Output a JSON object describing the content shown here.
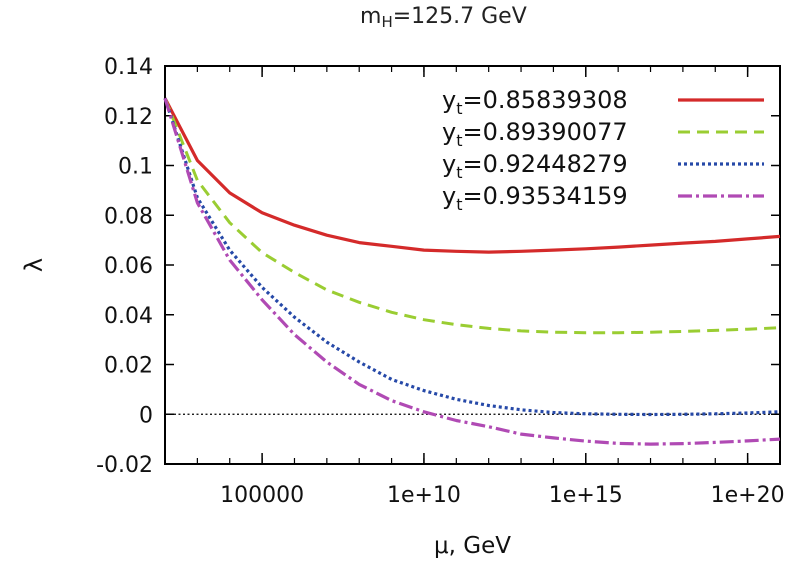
{
  "chart_data": {
    "type": "line",
    "title": {
      "prefix": "m",
      "sub": "H",
      "suffix": "=125.7 GeV"
    },
    "xlabel": "μ, GeV",
    "ylabel": "λ",
    "x_scale": "log10",
    "xlim": [
      100,
      1e+21
    ],
    "ylim": [
      -0.02,
      0.14
    ],
    "yticks": [
      -0.02,
      0,
      0.02,
      0.04,
      0.06,
      0.08,
      0.1,
      0.12,
      0.14
    ],
    "ytick_labels": [
      "-0.02",
      "0",
      "0.02",
      "0.04",
      "0.06",
      "0.08",
      "0.1",
      "0.12",
      "0.14"
    ],
    "xticks": [
      100000,
      10000000000.0,
      1000000000000000.0,
      1e+20
    ],
    "xtick_labels": [
      "100000",
      "1e+10",
      "1e+15",
      "1e+20"
    ],
    "grid": false,
    "zero_line": true,
    "legend_position": "top-right",
    "series": [
      {
        "name": "0.85839308",
        "legend_prefix": "y",
        "legend_sub": "t",
        "legend_eq": "=",
        "color": "#d42a2a",
        "dash": "solid",
        "x": [
          100,
          1000,
          10000,
          100000,
          1000000.0,
          10000000.0,
          100000000.0,
          1000000000.0,
          10000000000.0,
          100000000000.0,
          1000000000000.0,
          10000000000000.0,
          100000000000000.0,
          1000000000000000.0,
          1e+16,
          1e+17,
          1e+18,
          1e+19,
          1e+20,
          1e+21
        ],
        "y": [
          0.127,
          0.102,
          0.089,
          0.081,
          0.076,
          0.072,
          0.069,
          0.0675,
          0.066,
          0.0655,
          0.0652,
          0.0655,
          0.066,
          0.0665,
          0.0672,
          0.068,
          0.0688,
          0.0695,
          0.0705,
          0.0715
        ]
      },
      {
        "name": "0.89390077",
        "legend_prefix": "y",
        "legend_sub": "t",
        "legend_eq": "=",
        "color": "#9acd32",
        "dash": "12,7",
        "x": [
          100,
          1000,
          10000,
          100000,
          1000000.0,
          10000000.0,
          100000000.0,
          1000000000.0,
          10000000000.0,
          100000000000.0,
          1000000000000.0,
          10000000000000.0,
          100000000000000.0,
          1000000000000000.0,
          1e+16,
          1e+17,
          1e+18,
          1e+19,
          1e+20,
          1e+21
        ],
        "y": [
          0.127,
          0.094,
          0.077,
          0.065,
          0.057,
          0.05,
          0.045,
          0.041,
          0.038,
          0.036,
          0.0345,
          0.0335,
          0.033,
          0.0328,
          0.0328,
          0.033,
          0.0333,
          0.0337,
          0.0342,
          0.0348
        ]
      },
      {
        "name": "0.92448279",
        "legend_prefix": "y",
        "legend_sub": "t",
        "legend_eq": "=",
        "color": "#2649a8",
        "dash": "3,3",
        "x": [
          100,
          1000,
          10000,
          100000,
          1000000.0,
          10000000.0,
          100000000.0,
          1000000000.0,
          10000000000.0,
          100000000000.0,
          1000000000000.0,
          10000000000000.0,
          100000000000000.0,
          1000000000000000.0,
          1e+16,
          1e+17,
          1e+18,
          1e+19,
          1e+20,
          1e+21
        ],
        "y": [
          0.127,
          0.087,
          0.066,
          0.051,
          0.039,
          0.029,
          0.021,
          0.014,
          0.0095,
          0.006,
          0.0035,
          0.0018,
          0.0007,
          0.0002,
          0.0,
          -0.0001,
          0.0,
          0.0002,
          0.0005,
          0.001
        ]
      },
      {
        "name": "0.93534159",
        "legend_prefix": "y",
        "legend_sub": "t",
        "legend_eq": "=",
        "color": "#b04ab4",
        "dash": "14,4,3,4",
        "x": [
          100,
          1000,
          10000,
          100000,
          1000000.0,
          10000000.0,
          100000000.0,
          1000000000.0,
          10000000000.0,
          100000000000.0,
          1000000000000.0,
          10000000000000.0,
          100000000000000.0,
          1000000000000000.0,
          1e+16,
          1e+17,
          1e+18,
          1e+19,
          1e+20,
          1e+21
        ],
        "y": [
          0.127,
          0.085,
          0.062,
          0.046,
          0.032,
          0.021,
          0.012,
          0.0055,
          0.001,
          -0.0025,
          -0.005,
          -0.008,
          -0.0095,
          -0.0108,
          -0.0117,
          -0.012,
          -0.0118,
          -0.0113,
          -0.0107,
          -0.01
        ]
      }
    ]
  }
}
